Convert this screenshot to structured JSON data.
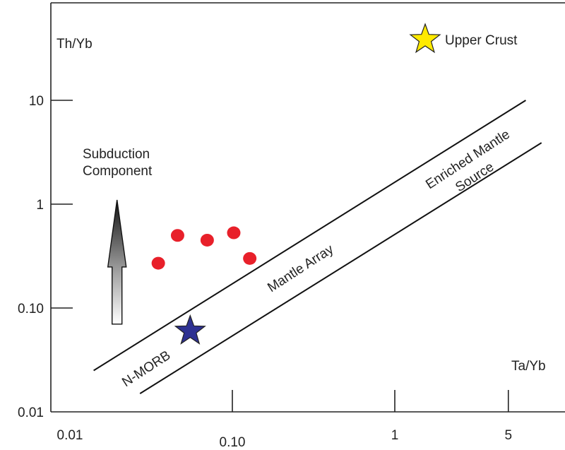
{
  "chart_data": {
    "type": "scatter",
    "title": "",
    "xlabel": "Ta/Yb",
    "ylabel": "Th/Yb",
    "x_scale": "log",
    "y_scale": "log",
    "xlim": [
      0.01,
      10
    ],
    "ylim": [
      0.01,
      30
    ],
    "grid": false,
    "x_ticks": [
      {
        "value": 0.01,
        "label": "0.01"
      },
      {
        "value": 0.1,
        "label": "0.10"
      },
      {
        "value": 1,
        "label": "1"
      },
      {
        "value": 5,
        "label": "5"
      }
    ],
    "y_ticks": [
      {
        "value": 0.01,
        "label": "0.01"
      },
      {
        "value": 0.1,
        "label": "0.10"
      },
      {
        "value": 1,
        "label": "1"
      },
      {
        "value": 10,
        "label": "10"
      }
    ],
    "series": [
      {
        "color": "#e8202a",
        "marker": "circle",
        "points": [
          {
            "x": 0.035,
            "y": 0.27
          },
          {
            "x": 0.046,
            "y": 0.5
          },
          {
            "x": 0.07,
            "y": 0.45
          },
          {
            "x": 0.102,
            "y": 0.53
          },
          {
            "x": 0.128,
            "y": 0.3
          }
        ]
      }
    ],
    "reference_points": [
      {
        "name": "N-MORB",
        "x": 0.055,
        "y": 0.06,
        "marker": "star",
        "color": "#2e3192"
      },
      {
        "name": "Upper Crust",
        "x": 2.0,
        "y": 20,
        "marker": "star",
        "color": "#ffea00"
      }
    ],
    "mantle_array": {
      "label": "Mantle Array",
      "upper_line": [
        {
          "x": 0.014,
          "y": 0.025
        },
        {
          "x": 6.4,
          "y": 10
        }
      ],
      "lower_line": [
        {
          "x": 0.027,
          "y": 0.015
        },
        {
          "x": 8.0,
          "y": 3.9
        }
      ]
    },
    "annotations": [
      {
        "key": "th_yb",
        "text": "Th/Yb"
      },
      {
        "key": "ta_yb",
        "text": "Ta/Yb"
      },
      {
        "key": "upper_crust",
        "text": "Upper Crust"
      },
      {
        "key": "subduction_1",
        "text": "Subduction"
      },
      {
        "key": "subduction_2",
        "text": "Component"
      },
      {
        "key": "mantle_array",
        "text": "Mantle Array"
      },
      {
        "key": "n_morb",
        "text": "N-MORB"
      },
      {
        "key": "enriched_1",
        "text": "Enriched Mantle"
      },
      {
        "key": "enriched_2",
        "text": "Source"
      }
    ],
    "arrow": {
      "label": "Subduction Component",
      "from_y": 0.07,
      "to_y": 1.1,
      "x": 0.0195
    }
  }
}
